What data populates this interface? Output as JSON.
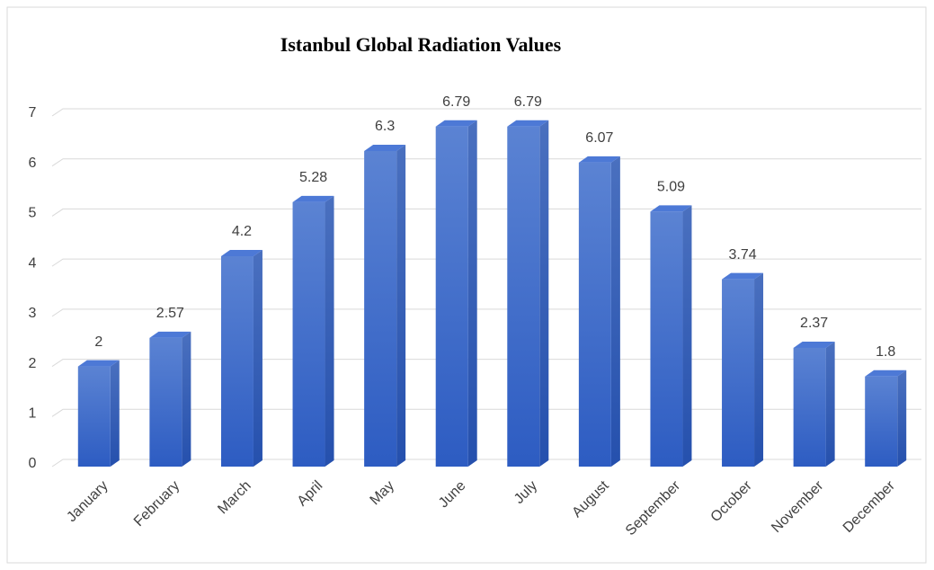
{
  "chart_data": {
    "type": "bar",
    "title": "Istanbul Global Radiation Values",
    "categories": [
      "January",
      "February",
      "March",
      "April",
      "May",
      "June",
      "July",
      "August",
      "September",
      "October",
      "November",
      "December"
    ],
    "values": [
      2,
      2.57,
      4.2,
      5.28,
      6.3,
      6.79,
      6.79,
      6.07,
      5.09,
      3.74,
      2.37,
      1.8
    ],
    "color": "#3f6fd0",
    "ylim": [
      0,
      7
    ],
    "yticks": [
      0,
      1,
      2,
      3,
      4,
      5,
      6,
      7
    ],
    "grid": true
  }
}
